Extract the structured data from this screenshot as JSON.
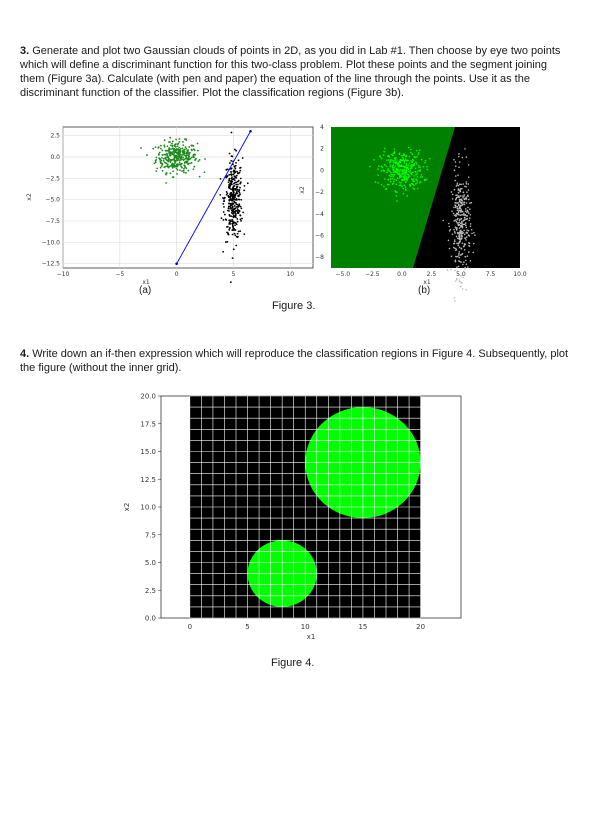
{
  "section3": {
    "number": "3.",
    "text": "Generate and plot two Gaussian clouds of points in 2D, as you did in Lab #1. Then choose by eye two points which will define a discriminant function for this two-class problem. Plot these points and the segment joining them (Figure 3a). Calculate (with pen and paper) the equation of the line through the points. Use it as the discriminant function of the classifier. Plot the classification regions (Figure 3b)."
  },
  "figure3": {
    "caption": "Figure 3.",
    "sub_a": "(a)",
    "sub_b": "(b)"
  },
  "section4": {
    "number": "4.",
    "text": "Write down an if-then expression which will reproduce the classification regions in Figure 4. Subsequently, plot the figure (without the inner grid)."
  },
  "figure4": {
    "caption": "Figure 4."
  },
  "colors": {
    "green_cloud": "#1a8a1a",
    "bright_green": "#00ff00",
    "dark_green_region": "#008000",
    "line_blue": "#0000ff",
    "black": "#000000",
    "gray_cloud": "#bbbbbb"
  },
  "chart_data": [
    {
      "id": "fig3a",
      "type": "scatter",
      "xlabel": "x1",
      "ylabel": "x2",
      "xticks": [
        "−10",
        "−5",
        "0",
        "5",
        "10"
      ],
      "yticks": [
        "2.5",
        "0.0",
        "−2.5",
        "−5.0",
        "−7.5",
        "−10.0",
        "−12.5"
      ],
      "xlim": [
        -10,
        12
      ],
      "ylim": [
        -13,
        3.5
      ],
      "series": [
        {
          "color": "#1a8a1a",
          "cloud_center": [
            0,
            0
          ],
          "cloud_std": [
            0.9,
            0.9
          ]
        },
        {
          "color": "#000000",
          "cloud_center": [
            5,
            -5
          ],
          "cloud_std": [
            0.4,
            2.4
          ]
        }
      ],
      "segment": {
        "points": [
          [
            0,
            -12.5
          ],
          [
            6.5,
            3
          ]
        ],
        "color": "#0000ff"
      }
    },
    {
      "id": "fig3b",
      "type": "scatter",
      "xlabel": "x1",
      "ylabel": "x2",
      "xticks": [
        "−5.0",
        "−2.5",
        "0.0",
        "2.5",
        "5.0",
        "7.5",
        "10.0"
      ],
      "yticks": [
        "4",
        "2",
        "0",
        "−2",
        "−4",
        "−6",
        "−8"
      ],
      "xlim": [
        -6,
        10
      ],
      "ylim": [
        -9,
        4
      ],
      "regions": [
        "dark-green left of line",
        "black right of line"
      ],
      "series": [
        {
          "color": "#00ff00",
          "cloud_center": [
            0,
            0
          ],
          "cloud_std": [
            0.9,
            0.9
          ]
        },
        {
          "color": "#bbbbbb",
          "cloud_center": [
            5,
            -5
          ],
          "cloud_std": [
            0.4,
            2.4
          ]
        }
      ]
    },
    {
      "id": "fig4",
      "type": "heatmap",
      "xlabel": "x1",
      "ylabel": "x2",
      "xticks": [
        "0",
        "5",
        "10",
        "15",
        "20"
      ],
      "yticks": [
        "20.0",
        "17.5",
        "15.0",
        "12.5",
        "10.0",
        "7.5",
        "5.0",
        "2.5",
        "0.0"
      ],
      "xlim": [
        -2.5,
        23.5
      ],
      "ylim": [
        0,
        20
      ],
      "background": "#000000",
      "grid": true,
      "circles": [
        {
          "center": [
            15,
            14
          ],
          "radius": 5,
          "color": "#00ff00"
        },
        {
          "center": [
            8,
            4
          ],
          "radius": 3,
          "color": "#00ff00"
        }
      ]
    }
  ]
}
